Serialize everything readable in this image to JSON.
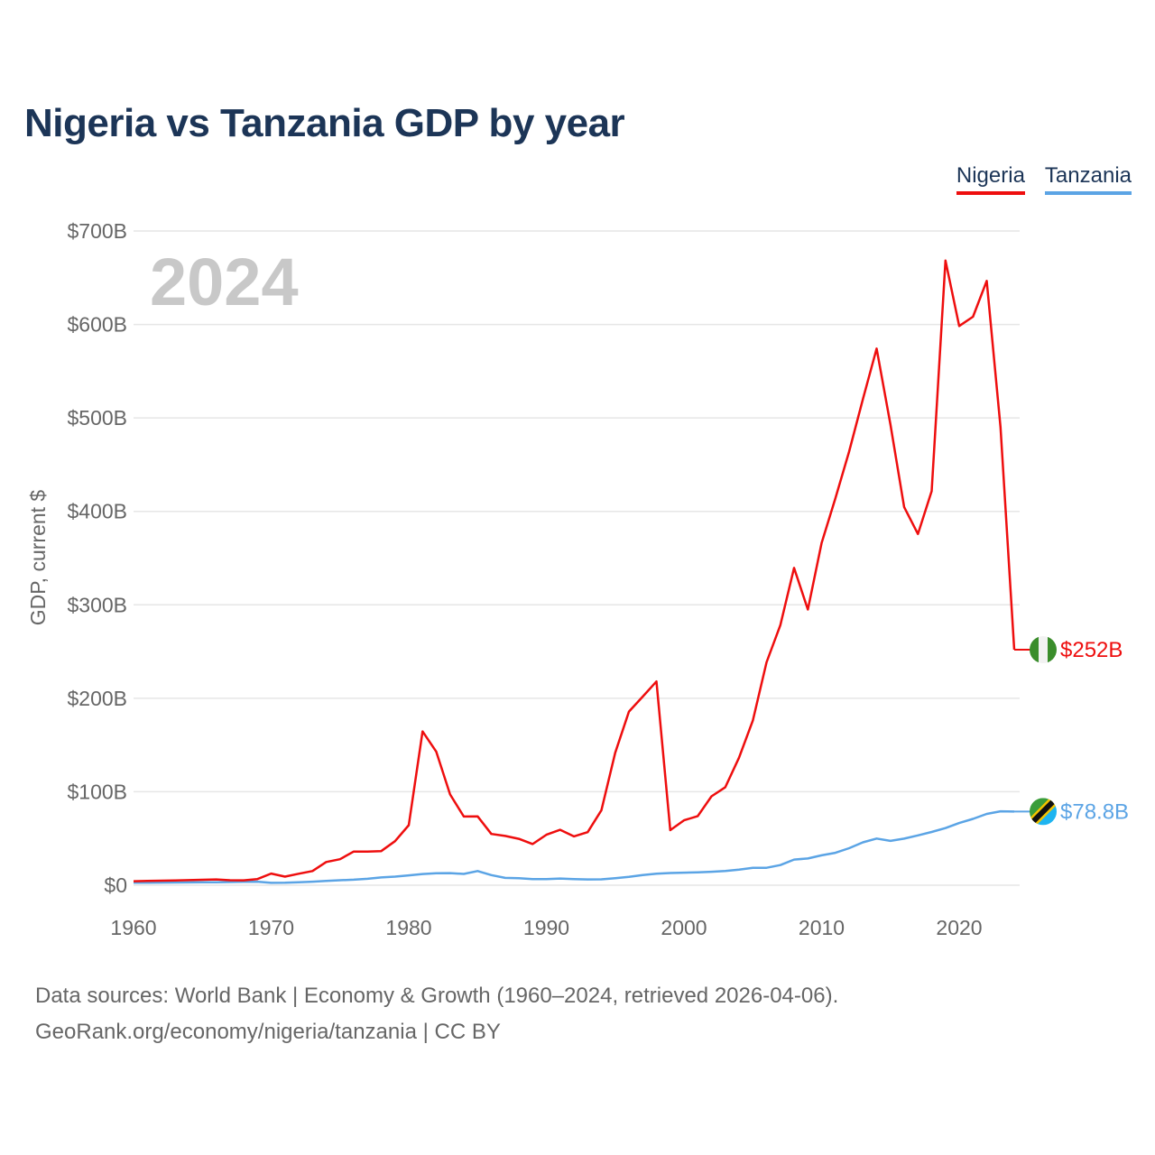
{
  "title": "Nigeria vs Tanzania GDP by year",
  "legend": {
    "nigeria": "Nigeria",
    "tanzania": "Tanzania"
  },
  "year_watermark": "2024",
  "source": {
    "line1": "Data sources: World Bank | Economy & Growth (1960–2024, retrieved 2026-04-06).",
    "line2": "GeoRank.org/economy/nigeria/tanzania | CC BY"
  },
  "colors": {
    "nigeria": "#ee0e0e",
    "tanzania": "#5ba4e5",
    "title": "#1c3557",
    "grid": "#e6e6e6",
    "axis_text": "#666666",
    "watermark": "#c8c8c8"
  },
  "chart_data": {
    "type": "line",
    "title": "Nigeria vs Tanzania GDP by year",
    "xlabel": "",
    "ylabel": "GDP, current $",
    "xlim": [
      1960,
      2024
    ],
    "ylim": [
      0,
      700
    ],
    "unit": "billion USD",
    "x_ticks": [
      1960,
      1970,
      1980,
      1990,
      2000,
      2010,
      2020
    ],
    "x_tick_labels": [
      "1960",
      "1970",
      "1980",
      "1990",
      "2000",
      "2010",
      "2020"
    ],
    "y_ticks": [
      0,
      100,
      200,
      300,
      400,
      500,
      600,
      700
    ],
    "y_tick_labels": [
      "$0",
      "$100B",
      "$200B",
      "$300B",
      "$400B",
      "$500B",
      "$600B",
      "$700B"
    ],
    "x": [
      1960,
      1961,
      1962,
      1963,
      1964,
      1965,
      1966,
      1967,
      1968,
      1969,
      1970,
      1971,
      1972,
      1973,
      1974,
      1975,
      1976,
      1977,
      1978,
      1979,
      1980,
      1981,
      1982,
      1983,
      1984,
      1985,
      1986,
      1987,
      1988,
      1989,
      1990,
      1991,
      1992,
      1993,
      1994,
      1995,
      1996,
      1997,
      1998,
      1999,
      2000,
      2001,
      2002,
      2003,
      2004,
      2005,
      2006,
      2007,
      2008,
      2009,
      2010,
      2011,
      2012,
      2013,
      2014,
      2015,
      2016,
      2017,
      2018,
      2019,
      2020,
      2021,
      2022,
      2023,
      2024
    ],
    "series": [
      {
        "name": "Nigeria",
        "end_label": "$252B",
        "values": [
          4.2,
          4.5,
          4.8,
          5.1,
          5.4,
          5.8,
          6.2,
          5.3,
          5.2,
          6.6,
          12.5,
          9.2,
          12.3,
          15.2,
          24.8,
          27.8,
          36.0,
          36.0,
          36.5,
          47.1,
          64.2,
          164.5,
          142.8,
          97.1,
          73.5,
          73.7,
          54.8,
          52.7,
          49.6,
          44.0,
          54.0,
          59.3,
          52.2,
          56.8,
          80.2,
          141.7,
          185.8,
          201.8,
          218.0,
          58.9,
          69.4,
          74.0,
          95.1,
          104.9,
          136.4,
          176.1,
          238.5,
          278.3,
          339.5,
          295.0,
          366.0,
          414.0,
          463.9,
          520.1,
          574.2,
          493.0,
          404.6,
          375.8,
          421.7,
          668.4,
          598.3,
          608.3,
          646.6,
          490.0,
          252.0
        ]
      },
      {
        "name": "Tanzania",
        "end_label": "$78.8B",
        "values": [
          2.6,
          2.7,
          2.8,
          2.9,
          3.0,
          3.1,
          3.2,
          3.4,
          3.6,
          3.8,
          2.5,
          2.6,
          3.1,
          3.8,
          4.6,
          5.3,
          5.9,
          6.9,
          8.3,
          9.2,
          10.5,
          12.0,
          12.8,
          12.9,
          12.1,
          15.2,
          10.8,
          7.8,
          7.5,
          6.5,
          6.5,
          7.1,
          6.6,
          6.2,
          6.3,
          7.4,
          8.9,
          10.9,
          12.3,
          13.0,
          13.4,
          13.8,
          14.4,
          15.3,
          16.7,
          18.5,
          18.6,
          21.5,
          27.4,
          28.6,
          32.0,
          34.7,
          39.6,
          45.9,
          49.9,
          47.4,
          49.8,
          53.3,
          57.0,
          61.1,
          66.5,
          71.0,
          76.3,
          79.1,
          78.8
        ]
      }
    ]
  }
}
